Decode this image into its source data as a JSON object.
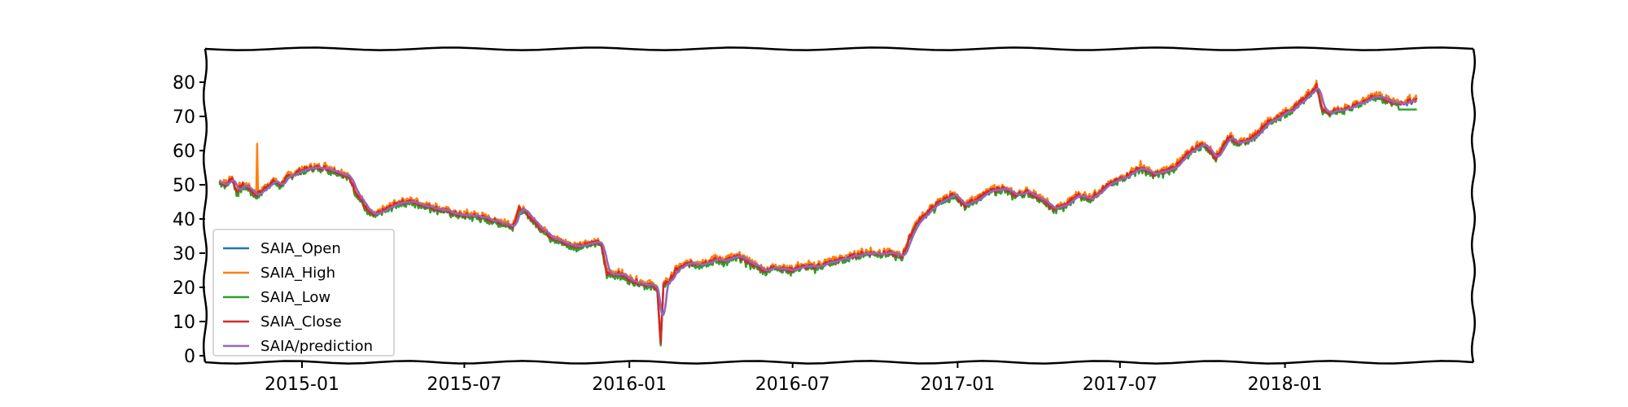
{
  "chart_data": {
    "type": "line",
    "title": "",
    "xlabel": "",
    "ylabel": "",
    "ylim": [
      0,
      85
    ],
    "yticks": [
      0,
      10,
      20,
      30,
      40,
      50,
      60,
      70,
      80
    ],
    "xlim": [
      "2014-09-15",
      "2018-07-30"
    ],
    "xticks": [
      "2015-01",
      "2015-07",
      "2016-01",
      "2016-07",
      "2017-01",
      "2017-07",
      "2018-01"
    ],
    "grid": false,
    "legend_position": "lower-left",
    "series": [
      {
        "name": "SAIA_Open",
        "color": "#1f77b4"
      },
      {
        "name": "SAIA_High",
        "color": "#ff7f0e"
      },
      {
        "name": "SAIA_Low",
        "color": "#2ca02c"
      },
      {
        "name": "SAIA_Close",
        "color": "#d62728"
      },
      {
        "name": "SAIA/prediction",
        "color": "#9467bd"
      }
    ],
    "close_points": [
      [
        "2014-10-01",
        51
      ],
      [
        "2014-10-08",
        50
      ],
      [
        "2014-10-15",
        52
      ],
      [
        "2014-10-20",
        48
      ],
      [
        "2014-10-27",
        50
      ],
      [
        "2014-11-03",
        49
      ],
      [
        "2014-11-10",
        47
      ],
      [
        "2014-11-17",
        48
      ],
      [
        "2014-11-24",
        50
      ],
      [
        "2014-12-01",
        51
      ],
      [
        "2014-12-08",
        50
      ],
      [
        "2014-12-15",
        52
      ],
      [
        "2014-12-22",
        53
      ],
      [
        "2014-12-29",
        54
      ],
      [
        "2015-01-12",
        55
      ],
      [
        "2015-01-26",
        55
      ],
      [
        "2015-02-09",
        54
      ],
      [
        "2015-02-23",
        52
      ],
      [
        "2015-03-02",
        48
      ],
      [
        "2015-03-09",
        45
      ],
      [
        "2015-03-16",
        42
      ],
      [
        "2015-03-23",
        41
      ],
      [
        "2015-04-06",
        43
      ],
      [
        "2015-04-20",
        45
      ],
      [
        "2015-05-04",
        45
      ],
      [
        "2015-05-18",
        44
      ],
      [
        "2015-06-01",
        43
      ],
      [
        "2015-06-15",
        42
      ],
      [
        "2015-06-29",
        41
      ],
      [
        "2015-07-13",
        41
      ],
      [
        "2015-07-27",
        40
      ],
      [
        "2015-08-10",
        39
      ],
      [
        "2015-08-24",
        38
      ],
      [
        "2015-08-31",
        43
      ],
      [
        "2015-09-07",
        42
      ],
      [
        "2015-09-21",
        38
      ],
      [
        "2015-10-05",
        35
      ],
      [
        "2015-10-19",
        33
      ],
      [
        "2015-11-02",
        32
      ],
      [
        "2015-11-16",
        33
      ],
      [
        "2015-11-30",
        33
      ],
      [
        "2015-12-07",
        24
      ],
      [
        "2015-12-21",
        24
      ],
      [
        "2016-01-04",
        22
      ],
      [
        "2016-01-18",
        21
      ],
      [
        "2016-02-01",
        20
      ],
      [
        "2016-02-05",
        3
      ],
      [
        "2016-02-08",
        21
      ],
      [
        "2016-02-15",
        22
      ],
      [
        "2016-02-22",
        25
      ],
      [
        "2016-03-07",
        27
      ],
      [
        "2016-03-21",
        27
      ],
      [
        "2016-04-04",
        28
      ],
      [
        "2016-04-18",
        28
      ],
      [
        "2016-05-02",
        29
      ],
      [
        "2016-05-16",
        27
      ],
      [
        "2016-05-30",
        25
      ],
      [
        "2016-06-13",
        26
      ],
      [
        "2016-06-27",
        25
      ],
      [
        "2016-07-11",
        26
      ],
      [
        "2016-07-25",
        26
      ],
      [
        "2016-08-08",
        27
      ],
      [
        "2016-08-22",
        28
      ],
      [
        "2016-09-05",
        29
      ],
      [
        "2016-09-19",
        30
      ],
      [
        "2016-10-03",
        30
      ],
      [
        "2016-10-17",
        30
      ],
      [
        "2016-10-31",
        29
      ],
      [
        "2016-11-14",
        38
      ],
      [
        "2016-11-28",
        42
      ],
      [
        "2016-12-12",
        45
      ],
      [
        "2016-12-26",
        47
      ],
      [
        "2017-01-09",
        44
      ],
      [
        "2017-01-23",
        46
      ],
      [
        "2017-02-06",
        48
      ],
      [
        "2017-02-20",
        49
      ],
      [
        "2017-03-06",
        47
      ],
      [
        "2017-03-20",
        48
      ],
      [
        "2017-04-03",
        46
      ],
      [
        "2017-04-17",
        43
      ],
      [
        "2017-05-01",
        44
      ],
      [
        "2017-05-15",
        47
      ],
      [
        "2017-05-29",
        46
      ],
      [
        "2017-06-12",
        49
      ],
      [
        "2017-06-26",
        51
      ],
      [
        "2017-07-10",
        53
      ],
      [
        "2017-07-24",
        55
      ],
      [
        "2017-08-07",
        53
      ],
      [
        "2017-08-21",
        54
      ],
      [
        "2017-09-04",
        56
      ],
      [
        "2017-09-18",
        60
      ],
      [
        "2017-10-02",
        62
      ],
      [
        "2017-10-16",
        58
      ],
      [
        "2017-10-30",
        64
      ],
      [
        "2017-11-13",
        62
      ],
      [
        "2017-11-27",
        64
      ],
      [
        "2017-12-11",
        68
      ],
      [
        "2017-12-25",
        70
      ],
      [
        "2018-01-08",
        72
      ],
      [
        "2018-01-22",
        75
      ],
      [
        "2018-02-05",
        79
      ],
      [
        "2018-02-12",
        72
      ],
      [
        "2018-02-19",
        71
      ],
      [
        "2018-03-05",
        72
      ],
      [
        "2018-03-19",
        73
      ],
      [
        "2018-04-02",
        75
      ],
      [
        "2018-04-16",
        76
      ],
      [
        "2018-04-30",
        74
      ],
      [
        "2018-05-14",
        74
      ],
      [
        "2018-05-28",
        75
      ]
    ],
    "high_spikes": [
      [
        "2014-11-12",
        62
      ],
      [
        "2015-08-31",
        44
      ],
      [
        "2017-07-24",
        57
      ]
    ]
  }
}
